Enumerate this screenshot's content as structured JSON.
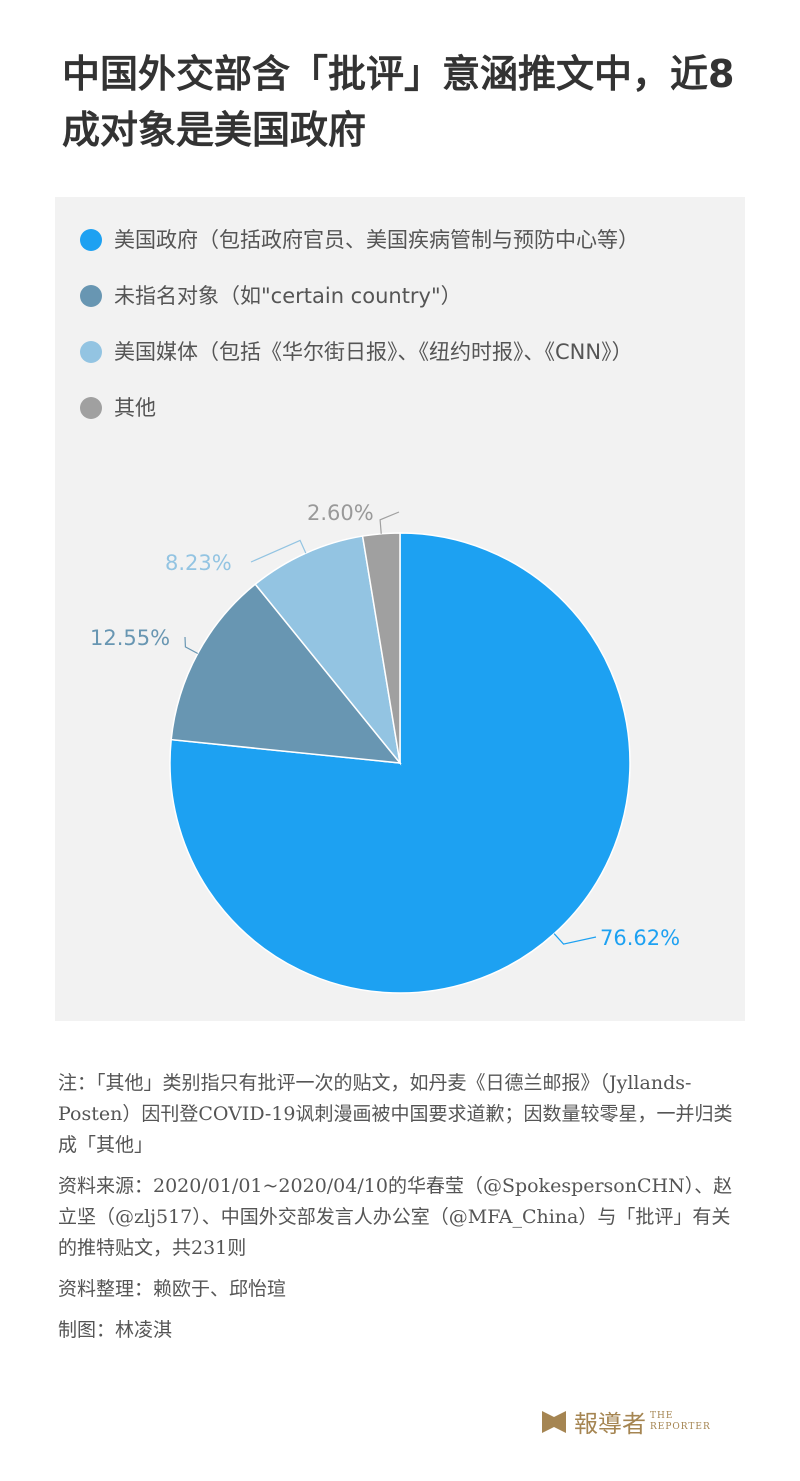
{
  "title": "中国外交部含「批评」意涵推文中，近8成对象是美国政府",
  "chart_data": {
    "type": "pie",
    "title": "中国外交部含「批评」意涵推文中，近8成对象是美国政府",
    "start": "12 o'clock, clockwise",
    "legend_position": "top",
    "series": [
      {
        "name": "美国政府（包括政府官员、美国疾病管制与预防中心等）",
        "value": 76.62,
        "label": "76.62%",
        "color": "#1da1f2"
      },
      {
        "name": "未指名对象（如\"certain country\"）",
        "value": 12.55,
        "label": "12.55%",
        "color": "#6896b2"
      },
      {
        "name": "美国媒体（包括《华尔街日报》、《纽约时报》、《CNN》）",
        "value": 8.23,
        "label": "8.23%",
        "color": "#93c4e2"
      },
      {
        "name": "其他",
        "value": 2.6,
        "label": "2.60%",
        "color": "#a0a0a0"
      }
    ]
  },
  "notes": {
    "note": "注：「其他」类别指只有批评一次的贴文，如丹麦《日德兰邮报》（Jyllands-Posten）因刊登COVID-19讽刺漫画被中国要求道歉；因数量较零星，一并归类成「其他」",
    "source": "资料来源：2020/01/01~2020/04/10的华春莹（@SpokespersonCHN）、赵立坚（@zlj517）、中国外交部发言人办公室（@MFA_China）与「批评」有关的推特贴文，共231则",
    "compiled": "资料整理：赖欧于、邱怡瑄",
    "designer": "制图：林凌淇"
  },
  "logo": {
    "cn": "報導者",
    "en1": "THE",
    "en2": "REPORTER",
    "color": "#a58552"
  }
}
